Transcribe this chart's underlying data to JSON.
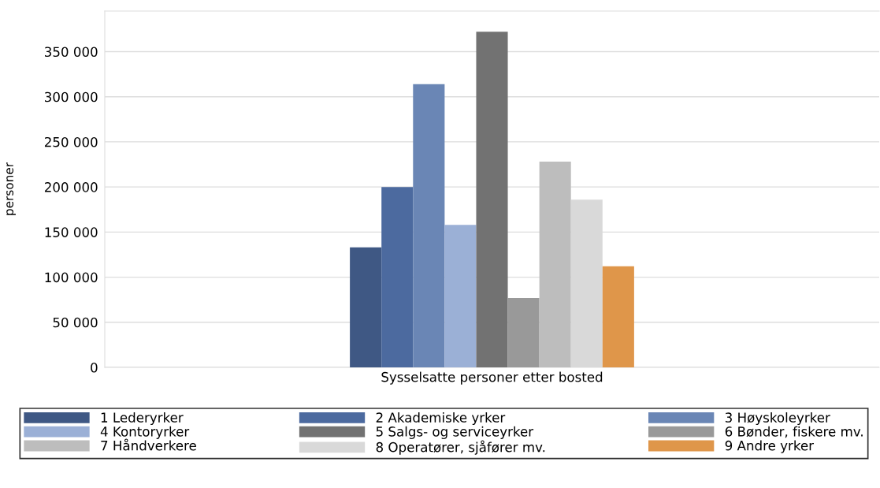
{
  "chart_data": {
    "type": "bar",
    "ylabel": "personer",
    "categories": [
      "Sysselsatte personer etter bosted"
    ],
    "series": [
      {
        "name": "1 Lederyrker",
        "color": "#3f5884",
        "values": [
          133000
        ]
      },
      {
        "name": "2 Akademiske yrker",
        "color": "#4c6a9f",
        "values": [
          200000
        ]
      },
      {
        "name": "3 Høyskoleyrker",
        "color": "#6a86b5",
        "values": [
          314000
        ]
      },
      {
        "name": "4 Kontoryrker",
        "color": "#9bb0d6",
        "values": [
          158000
        ]
      },
      {
        "name": "5 Salgs- og serviceyrker",
        "color": "#727272",
        "values": [
          372000
        ]
      },
      {
        "name": "6 Bønder, fiskere mv.",
        "color": "#999999",
        "values": [
          77000
        ]
      },
      {
        "name": "7 Håndverkere",
        "color": "#bdbdbd",
        "values": [
          228000
        ]
      },
      {
        "name": "8 Operatører, sjåfører mv.",
        "color": "#d9d9d9",
        "values": [
          186000
        ]
      },
      {
        "name": "9 Andre yrker",
        "color": "#df964a",
        "values": [
          112000
        ]
      }
    ],
    "ylim": [
      0,
      395000
    ],
    "yticks": [
      {
        "value": 0,
        "label": "0"
      },
      {
        "value": 50000,
        "label": "50 000"
      },
      {
        "value": 100000,
        "label": "100 000"
      },
      {
        "value": 150000,
        "label": "150 000"
      },
      {
        "value": 200000,
        "label": "200 000"
      },
      {
        "value": 250000,
        "label": "250 000"
      },
      {
        "value": 300000,
        "label": "300 000"
      },
      {
        "value": 350000,
        "label": "350 000"
      }
    ],
    "grid": "y",
    "legend": "bottom"
  }
}
